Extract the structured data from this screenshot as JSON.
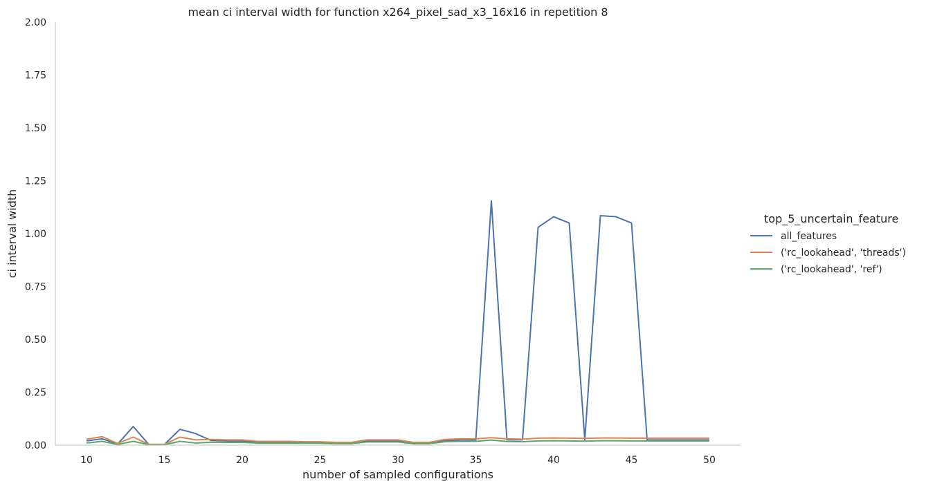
{
  "chart_data": {
    "type": "line",
    "title": "mean ci interval width for function x264_pixel_sad_x3_16x16 in repetition 8",
    "xlabel": "number of sampled configurations",
    "ylabel": "ci interval width",
    "xlim": [
      8,
      52
    ],
    "ylim": [
      0,
      2.0
    ],
    "xticks": [
      10,
      15,
      20,
      25,
      30,
      35,
      40,
      45,
      50
    ],
    "yticks": [
      0.0,
      0.25,
      0.5,
      0.75,
      1.0,
      1.25,
      1.5,
      1.75,
      2.0
    ],
    "ytick_labels": [
      "0.00",
      "0.25",
      "0.50",
      "0.75",
      "1.00",
      "1.25",
      "1.50",
      "1.75",
      "2.00"
    ],
    "grid": false,
    "legend": {
      "title": "top_5_uncertain_feature",
      "placement": "right"
    },
    "x": [
      10,
      11,
      12,
      13,
      14,
      15,
      16,
      17,
      18,
      19,
      20,
      21,
      22,
      23,
      24,
      25,
      26,
      27,
      28,
      29,
      30,
      31,
      32,
      33,
      34,
      35,
      36,
      37,
      38,
      39,
      40,
      41,
      42,
      43,
      44,
      45,
      46,
      47,
      48,
      49,
      50
    ],
    "series": [
      {
        "name": "all_features",
        "color": "#4c72b0",
        "values": [
          0.02,
          0.03,
          0.005,
          0.088,
          0.003,
          0.003,
          0.075,
          0.055,
          0.022,
          0.02,
          0.02,
          0.015,
          0.015,
          0.015,
          0.013,
          0.013,
          0.01,
          0.01,
          0.02,
          0.02,
          0.02,
          0.01,
          0.01,
          0.02,
          0.025,
          0.025,
          1.155,
          0.025,
          0.025,
          1.03,
          1.08,
          1.05,
          0.025,
          1.085,
          1.08,
          1.05,
          0.025,
          0.025,
          0.025,
          0.025,
          0.025
        ]
      },
      {
        "name": "('rc_lookahead', 'threads')",
        "color": "#dd8452",
        "values": [
          0.028,
          0.04,
          0.008,
          0.038,
          0.004,
          0.004,
          0.038,
          0.025,
          0.027,
          0.025,
          0.025,
          0.018,
          0.018,
          0.018,
          0.016,
          0.016,
          0.013,
          0.013,
          0.025,
          0.025,
          0.025,
          0.013,
          0.013,
          0.027,
          0.03,
          0.03,
          0.035,
          0.03,
          0.028,
          0.033,
          0.034,
          0.033,
          0.032,
          0.034,
          0.034,
          0.033,
          0.033,
          0.033,
          0.033,
          0.033,
          0.033
        ]
      },
      {
        "name": "('rc_lookahead', 'ref')",
        "color": "#55a868",
        "values": [
          0.01,
          0.018,
          0.003,
          0.018,
          0.002,
          0.002,
          0.018,
          0.01,
          0.014,
          0.013,
          0.013,
          0.01,
          0.01,
          0.01,
          0.009,
          0.009,
          0.007,
          0.007,
          0.015,
          0.015,
          0.015,
          0.007,
          0.007,
          0.016,
          0.018,
          0.018,
          0.024,
          0.017,
          0.016,
          0.02,
          0.021,
          0.02,
          0.019,
          0.021,
          0.021,
          0.02,
          0.02,
          0.02,
          0.02,
          0.02,
          0.02
        ]
      }
    ]
  }
}
